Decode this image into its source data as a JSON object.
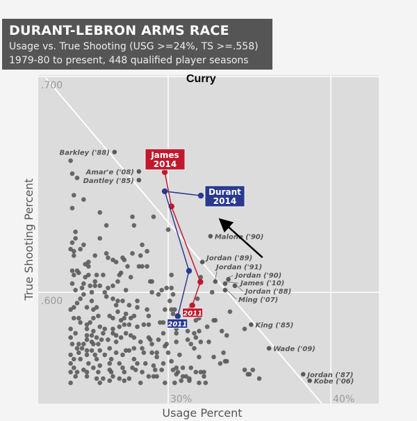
{
  "chart_data": {
    "type": "scatter",
    "title": "DURANT-LEBRON ARMS RACE",
    "subtitle_1": "Usage vs. True Shooting (USG >=24%, TS >=.558)",
    "subtitle_2": "1979-80 to present, 448 qualified player seasons",
    "xlabel": "Usage Percent",
    "ylabel": "True Shooting Percent",
    "xlim": [
      22.0,
      42.9
    ],
    "ylim": [
      0.547,
      0.703
    ],
    "x_ticks": [
      {
        "value": 30,
        "label": "30%"
      },
      {
        "value": 40,
        "label": "40%"
      }
    ],
    "y_ticks": [
      {
        "value": 0.6,
        "label": ".600"
      },
      {
        "value": 0.7,
        "label": ".700"
      }
    ],
    "grid": true,
    "colors": {
      "plot_bg": "#dcdcdc",
      "dot": "#5a5a5a",
      "james": "#c0182c",
      "durant": "#2a3990",
      "grid": "#ffffff"
    },
    "trend_line": [
      [
        22.47,
        0.6994
      ],
      [
        39.45,
        0.5484
      ]
    ],
    "annotation": {
      "text": "Curry",
      "arrow_from": [
        35.8,
        0.6161
      ],
      "arrow_to": [
        33.25,
        0.6335
      ]
    },
    "labeled_points": [
      {
        "label": "Barkley ('88)",
        "x": 26.7,
        "y": 0.665,
        "side": "left"
      },
      {
        "label": "Amar'e ('08)",
        "x": 28.2,
        "y": 0.656,
        "side": "left"
      },
      {
        "label": "Dantley ('85)",
        "x": 28.2,
        "y": 0.652,
        "side": "left"
      },
      {
        "label": "Malone ('90)",
        "x": 32.6,
        "y": 0.626,
        "side": "right"
      },
      {
        "label": "Jordan ('89)",
        "x": 32.1,
        "y": 0.614,
        "side": "right"
      },
      {
        "label": "Jordan ('91)",
        "x": 32.9,
        "y": 0.605,
        "side": "above"
      },
      {
        "label": "Jordan ('90)",
        "x": 33.7,
        "y": 0.606,
        "side": "leader"
      },
      {
        "label": "James ('10)",
        "x": 33.5,
        "y": 0.604,
        "side": "leader"
      },
      {
        "label": "Jordan ('88)",
        "x": 34.1,
        "y": 0.603,
        "side": "leader"
      },
      {
        "label": "Ming ('07)",
        "x": 33.5,
        "y": 0.601,
        "side": "leader"
      },
      {
        "label": "King ('85)",
        "x": 35.1,
        "y": 0.585,
        "side": "right"
      },
      {
        "label": "Wade ('09)",
        "x": 36.2,
        "y": 0.574,
        "side": "right"
      },
      {
        "label": "Jordan ('87)",
        "x": 38.3,
        "y": 0.562,
        "side": "right"
      },
      {
        "label": "Kobe ('06)",
        "x": 38.7,
        "y": 0.559,
        "side": "right"
      }
    ],
    "series": [
      {
        "name": "James",
        "start_label": "2011",
        "end_label_1": "James",
        "end_label_2": "2014",
        "points": [
          [
            31.48,
            0.5939
          ],
          [
            31.98,
            0.6048
          ],
          [
            30.2,
            0.6398
          ],
          [
            29.79,
            0.6557
          ]
        ]
      },
      {
        "name": "Durant",
        "start_label": "2011",
        "end_label_1": "Durant",
        "end_label_2": "2014",
        "points": [
          [
            30.59,
            0.5889
          ],
          [
            31.28,
            0.6099
          ],
          [
            29.79,
            0.6468
          ],
          [
            32.01,
            0.6448
          ]
        ]
      }
    ],
    "points": [
      [
        24.0,
        0.661
      ],
      [
        24.1,
        0.655
      ],
      [
        24.4,
        0.653
      ],
      [
        24.2,
        0.645
      ],
      [
        24.8,
        0.643
      ],
      [
        24.1,
        0.639
      ],
      [
        25.8,
        0.637
      ],
      [
        26.2,
        0.631
      ],
      [
        27.8,
        0.635
      ],
      [
        27.9,
        0.631
      ],
      [
        29.1,
        0.635
      ],
      [
        30.0,
        0.629
      ],
      [
        24.3,
        0.628
      ],
      [
        24.3,
        0.625
      ],
      [
        25.8,
        0.625
      ],
      [
        24.1,
        0.623
      ],
      [
        24.8,
        0.622
      ],
      [
        28.4,
        0.622
      ],
      [
        24.0,
        0.62
      ],
      [
        24.6,
        0.62
      ],
      [
        24.2,
        0.619
      ],
      [
        28.7,
        0.619
      ],
      [
        26.2,
        0.618
      ],
      [
        27.8,
        0.618
      ],
      [
        24.2,
        0.617
      ],
      [
        25.5,
        0.617
      ],
      [
        28.3,
        0.617
      ],
      [
        26.3,
        0.616
      ],
      [
        27.2,
        0.616
      ],
      [
        26.6,
        0.615
      ],
      [
        27.3,
        0.615
      ],
      [
        25.1,
        0.614
      ],
      [
        26.8,
        0.614
      ],
      [
        24.9,
        0.613
      ],
      [
        25.1,
        0.612
      ],
      [
        27.5,
        0.612
      ],
      [
        28.2,
        0.612
      ],
      [
        28.4,
        0.612
      ],
      [
        28.7,
        0.612
      ],
      [
        24.1,
        0.61
      ],
      [
        24.4,
        0.61
      ],
      [
        24.2,
        0.608
      ],
      [
        24.5,
        0.609
      ],
      [
        25.1,
        0.608
      ],
      [
        25.6,
        0.608
      ],
      [
        26.0,
        0.608
      ],
      [
        27.0,
        0.608
      ],
      [
        27.1,
        0.609
      ],
      [
        30.2,
        0.608
      ],
      [
        24.9,
        0.607
      ],
      [
        27.7,
        0.607
      ],
      [
        25.5,
        0.605
      ],
      [
        26.9,
        0.605
      ],
      [
        28.9,
        0.605
      ],
      [
        29.0,
        0.605
      ],
      [
        24.1,
        0.604
      ],
      [
        24.8,
        0.604
      ],
      [
        25.2,
        0.603
      ],
      [
        25.5,
        0.603
      ],
      [
        25.8,
        0.603
      ],
      [
        26.6,
        0.603
      ],
      [
        24.7,
        0.602
      ],
      [
        26.3,
        0.602
      ],
      [
        29.9,
        0.602
      ],
      [
        30.2,
        0.602
      ],
      [
        29.6,
        0.601
      ],
      [
        24.3,
        0.601
      ],
      [
        32.0,
        0.607
      ],
      [
        30.3,
        0.599
      ],
      [
        32.7,
        0.6
      ],
      [
        30.1,
        0.596
      ],
      [
        31.8,
        0.597
      ],
      [
        29.8,
        0.592
      ],
      [
        30.2,
        0.592
      ],
      [
        30.4,
        0.592
      ],
      [
        31.3,
        0.592
      ],
      [
        30.3,
        0.59
      ],
      [
        33.8,
        0.591
      ],
      [
        31.7,
        0.587
      ],
      [
        31.9,
        0.588
      ],
      [
        32.9,
        0.587
      ],
      [
        29.7,
        0.586
      ],
      [
        32.4,
        0.584
      ],
      [
        32.8,
        0.587
      ],
      [
        30.5,
        0.583
      ],
      [
        30.5,
        0.581
      ],
      [
        31.2,
        0.582
      ],
      [
        31.9,
        0.582
      ],
      [
        33.3,
        0.582
      ],
      [
        33.6,
        0.58
      ],
      [
        34.7,
        0.583
      ],
      [
        31.6,
        0.581
      ],
      [
        31.7,
        0.579
      ],
      [
        31.2,
        0.578
      ],
      [
        30.5,
        0.577
      ],
      [
        32.0,
        0.577
      ],
      [
        32.5,
        0.577
      ],
      [
        31.4,
        0.576
      ],
      [
        31.6,
        0.574
      ],
      [
        30.0,
        0.572
      ],
      [
        33.4,
        0.572
      ],
      [
        30.7,
        0.571
      ],
      [
        31.9,
        0.57
      ],
      [
        32.8,
        0.57
      ],
      [
        30.2,
        0.568
      ],
      [
        33.2,
        0.567
      ],
      [
        33.5,
        0.568
      ],
      [
        33.6,
        0.568
      ],
      [
        30.5,
        0.565
      ],
      [
        30.9,
        0.565
      ],
      [
        31.4,
        0.565
      ],
      [
        30.3,
        0.564
      ],
      [
        34.7,
        0.564
      ],
      [
        35.2,
        0.564
      ],
      [
        31.7,
        0.563
      ],
      [
        32.0,
        0.563
      ],
      [
        32.2,
        0.563
      ],
      [
        30.6,
        0.563
      ],
      [
        30.5,
        0.562
      ],
      [
        34.9,
        0.562
      ],
      [
        35.0,
        0.562
      ],
      [
        30.9,
        0.561
      ],
      [
        31.1,
        0.561
      ],
      [
        32.2,
        0.561
      ],
      [
        31.3,
        0.56
      ],
      [
        35.6,
        0.56
      ],
      [
        30.8,
        0.559
      ],
      [
        31.3,
        0.559
      ],
      [
        30.4,
        0.558
      ],
      [
        31.9,
        0.558
      ],
      [
        32.3,
        0.558
      ],
      [
        24.8,
        0.599
      ],
      [
        25.3,
        0.6
      ],
      [
        26.1,
        0.6
      ],
      [
        27.4,
        0.601
      ],
      [
        29.0,
        0.6
      ],
      [
        29.4,
        0.599
      ],
      [
        24.6,
        0.597
      ],
      [
        25.3,
        0.596
      ],
      [
        26.2,
        0.598
      ],
      [
        26.6,
        0.597
      ],
      [
        26.9,
        0.596
      ],
      [
        27.2,
        0.596
      ],
      [
        28.1,
        0.596
      ],
      [
        24.4,
        0.595
      ],
      [
        26.8,
        0.594
      ],
      [
        27.6,
        0.594
      ],
      [
        24.2,
        0.593
      ],
      [
        25.0,
        0.593
      ],
      [
        25.6,
        0.593
      ],
      [
        28.1,
        0.593
      ],
      [
        28.7,
        0.592
      ],
      [
        24.0,
        0.592
      ],
      [
        25.4,
        0.592
      ],
      [
        26.9,
        0.591
      ],
      [
        27.4,
        0.59
      ],
      [
        28.8,
        0.589
      ],
      [
        26.4,
        0.589
      ],
      [
        25.7,
        0.589
      ],
      [
        24.2,
        0.588
      ],
      [
        24.5,
        0.588
      ],
      [
        25.4,
        0.588
      ],
      [
        26.6,
        0.588
      ],
      [
        27.3,
        0.588
      ],
      [
        27.7,
        0.588
      ],
      [
        27.9,
        0.589
      ],
      [
        24.6,
        0.586
      ],
      [
        25.2,
        0.586
      ],
      [
        25.0,
        0.585
      ],
      [
        27.1,
        0.587
      ],
      [
        27.3,
        0.585
      ],
      [
        27.6,
        0.585
      ],
      [
        28.1,
        0.584
      ],
      [
        28.5,
        0.585
      ],
      [
        28.8,
        0.585
      ],
      [
        29.5,
        0.586
      ],
      [
        24.0,
        0.583
      ],
      [
        25.0,
        0.583
      ],
      [
        25.8,
        0.584
      ],
      [
        26.1,
        0.583
      ],
      [
        26.6,
        0.583
      ],
      [
        27.0,
        0.584
      ],
      [
        24.3,
        0.581
      ],
      [
        25.4,
        0.582
      ],
      [
        26.0,
        0.581
      ],
      [
        26.6,
        0.581
      ],
      [
        27.4,
        0.581
      ],
      [
        29.7,
        0.581
      ],
      [
        25.0,
        0.58
      ],
      [
        25.3,
        0.58
      ],
      [
        26.8,
        0.58
      ],
      [
        27.7,
        0.58
      ],
      [
        24.0,
        0.579
      ],
      [
        25.6,
        0.579
      ],
      [
        25.0,
        0.578
      ],
      [
        25.9,
        0.578
      ],
      [
        26.3,
        0.578
      ],
      [
        27.1,
        0.579
      ],
      [
        27.9,
        0.579
      ],
      [
        28.8,
        0.579
      ],
      [
        29.4,
        0.578
      ],
      [
        25.3,
        0.577
      ],
      [
        26.8,
        0.577
      ],
      [
        28.3,
        0.577
      ],
      [
        28.9,
        0.578
      ],
      [
        24.1,
        0.576
      ],
      [
        24.5,
        0.576
      ],
      [
        24.8,
        0.576
      ],
      [
        25.4,
        0.576
      ],
      [
        25.7,
        0.576
      ],
      [
        29.0,
        0.576
      ],
      [
        29.9,
        0.576
      ],
      [
        24.4,
        0.574
      ],
      [
        24.7,
        0.574
      ],
      [
        26.4,
        0.574
      ],
      [
        27.9,
        0.574
      ],
      [
        28.4,
        0.574
      ],
      [
        29.8,
        0.575
      ],
      [
        25.0,
        0.573
      ],
      [
        25.3,
        0.573
      ],
      [
        25.8,
        0.573
      ],
      [
        27.4,
        0.573
      ],
      [
        24.5,
        0.572
      ],
      [
        26.1,
        0.571
      ],
      [
        26.8,
        0.572
      ],
      [
        27.2,
        0.571
      ],
      [
        27.6,
        0.573
      ],
      [
        28.5,
        0.572
      ],
      [
        29.0,
        0.572
      ],
      [
        29.3,
        0.572
      ],
      [
        24.0,
        0.571
      ],
      [
        25.0,
        0.571
      ],
      [
        25.5,
        0.571
      ],
      [
        24.2,
        0.569
      ],
      [
        24.6,
        0.569
      ],
      [
        25.6,
        0.569
      ],
      [
        26.5,
        0.569
      ],
      [
        27.9,
        0.569
      ],
      [
        29.3,
        0.57
      ],
      [
        24.0,
        0.567
      ],
      [
        25.1,
        0.567
      ],
      [
        25.8,
        0.566
      ],
      [
        26.4,
        0.567
      ],
      [
        27.0,
        0.567
      ],
      [
        28.1,
        0.567
      ],
      [
        28.6,
        0.567
      ],
      [
        29.7,
        0.567
      ],
      [
        24.2,
        0.565
      ],
      [
        24.8,
        0.564
      ],
      [
        25.4,
        0.565
      ],
      [
        26.4,
        0.564
      ],
      [
        27.2,
        0.565
      ],
      [
        27.8,
        0.565
      ],
      [
        29.1,
        0.566
      ],
      [
        24.4,
        0.563
      ],
      [
        24.0,
        0.563
      ],
      [
        25.0,
        0.563
      ],
      [
        25.7,
        0.563
      ],
      [
        26.5,
        0.563
      ],
      [
        27.3,
        0.563
      ],
      [
        28.0,
        0.564
      ],
      [
        28.4,
        0.563
      ],
      [
        29.2,
        0.564
      ],
      [
        29.6,
        0.564
      ],
      [
        24.3,
        0.561
      ],
      [
        25.0,
        0.561
      ],
      [
        25.6,
        0.56
      ],
      [
        26.0,
        0.56
      ],
      [
        26.6,
        0.561
      ],
      [
        27.0,
        0.56
      ],
      [
        27.6,
        0.56
      ],
      [
        28.8,
        0.561
      ],
      [
        29.1,
        0.561
      ],
      [
        29.3,
        0.561
      ],
      [
        24.0,
        0.558
      ],
      [
        25.8,
        0.558
      ],
      [
        26.4,
        0.559
      ],
      [
        27.3,
        0.559
      ],
      [
        28.3,
        0.558
      ],
      [
        29.8,
        0.558
      ]
    ]
  }
}
